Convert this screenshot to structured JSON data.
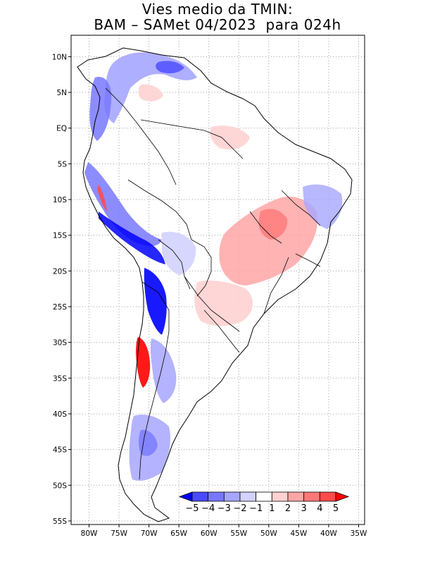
{
  "title": {
    "line1": "Vies medio da TMIN:",
    "line2": "BAM – SAMet 04/2023  para 024h"
  },
  "map": {
    "lat_labels": [
      "10N",
      "5N",
      "EQ",
      "5S",
      "10S",
      "15S",
      "20S",
      "25S",
      "30S",
      "35S",
      "40S",
      "45S",
      "50S",
      "55S"
    ],
    "lon_labels": [
      "80W",
      "75W",
      "70W",
      "65W",
      "60W",
      "55W",
      "50W",
      "45W",
      "40W",
      "35W"
    ],
    "lon_range": [
      -83,
      -34
    ],
    "lat_range": [
      -55.5,
      13
    ],
    "grid": true,
    "colors": {
      "ocean": "#ffffff",
      "land": "#ffffff",
      "border": "#000000",
      "grid": "#a0a0a0"
    }
  },
  "colorbar": {
    "labels": [
      "−5",
      "−4",
      "−3",
      "−2",
      "−1",
      "1",
      "2",
      "3",
      "4",
      "5"
    ],
    "colors": [
      "#0000ff",
      "#4a4aff",
      "#7878ff",
      "#a6a6ff",
      "#d2d2ff",
      "#ffffff",
      "#ffd2d2",
      "#ffa6a6",
      "#ff7878",
      "#ff4a4a",
      "#ff0000"
    ]
  }
}
